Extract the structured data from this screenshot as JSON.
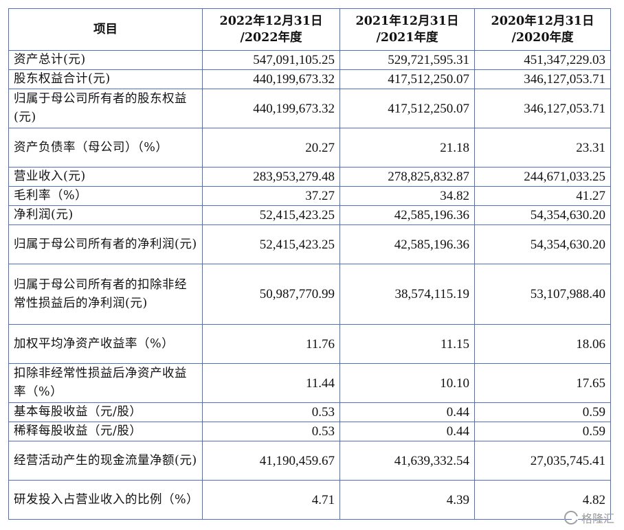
{
  "table": {
    "headers": [
      "项目",
      "2022年12月31日\n/2022年度",
      "2021年12月31日\n/2021年度",
      "2020年12月31日\n/2020年度"
    ],
    "rows": [
      {
        "label": "资产总计(元)",
        "lines": 1,
        "values": [
          "547,091,105.25",
          "529,721,595.31",
          "451,347,229.03"
        ]
      },
      {
        "label": "股东权益合计(元)",
        "lines": 1,
        "values": [
          "440,199,673.32",
          "417,512,250.07",
          "346,127,053.71"
        ]
      },
      {
        "label": "归属于母公司所有者的股东权益(元)",
        "lines": 2,
        "values": [
          "440,199,673.32",
          "417,512,250.07",
          "346,127,053.71"
        ]
      },
      {
        "label": "资产负债率（母公司）（%）",
        "lines": 2,
        "values": [
          "20.27",
          "21.18",
          "23.31"
        ]
      },
      {
        "label": "营业收入(元)",
        "lines": 1,
        "values": [
          "283,953,279.48",
          "278,825,832.87",
          "244,671,033.25"
        ]
      },
      {
        "label": "毛利率（%）",
        "lines": 1,
        "values": [
          "37.27",
          "34.82",
          "41.27"
        ]
      },
      {
        "label": "净利润(元)",
        "lines": 1,
        "values": [
          "52,415,423.25",
          "42,585,196.36",
          "54,354,630.20"
        ]
      },
      {
        "label": "归属于母公司所有者的净利润(元)",
        "lines": 2,
        "values": [
          "52,415,423.25",
          "42,585,196.36",
          "54,354,630.20"
        ]
      },
      {
        "label": "归属于母公司所有者的扣除非经常性损益后的净利润(元)",
        "lines": 3,
        "values": [
          "50,987,770.99",
          "38,574,115.19",
          "53,107,988.40"
        ]
      },
      {
        "label": "加权平均净资产收益率（%）",
        "lines": 2,
        "values": [
          "11.76",
          "11.15",
          "18.06"
        ]
      },
      {
        "label": "扣除非经常性损益后净资产收益率（%）",
        "lines": 2,
        "values": [
          "11.44",
          "10.10",
          "17.65"
        ]
      },
      {
        "label": "基本每股收益（元/股）",
        "lines": 1,
        "values": [
          "0.53",
          "0.44",
          "0.59"
        ]
      },
      {
        "label": "稀释每股收益（元/股）",
        "lines": 1,
        "values": [
          "0.53",
          "0.44",
          "0.59"
        ]
      },
      {
        "label": "经营活动产生的现金流量净额(元)",
        "lines": 2,
        "values": [
          "41,190,459.67",
          "41,639,332.54",
          "27,035,745.41"
        ]
      },
      {
        "label": "研发投入占营业收入的比例（%）",
        "lines": 2,
        "values": [
          "4.71",
          "4.39",
          "4.82"
        ]
      }
    ]
  },
  "watermark": {
    "text": "格隆汇",
    "logo_icon": "gelonghui-logo-icon"
  }
}
